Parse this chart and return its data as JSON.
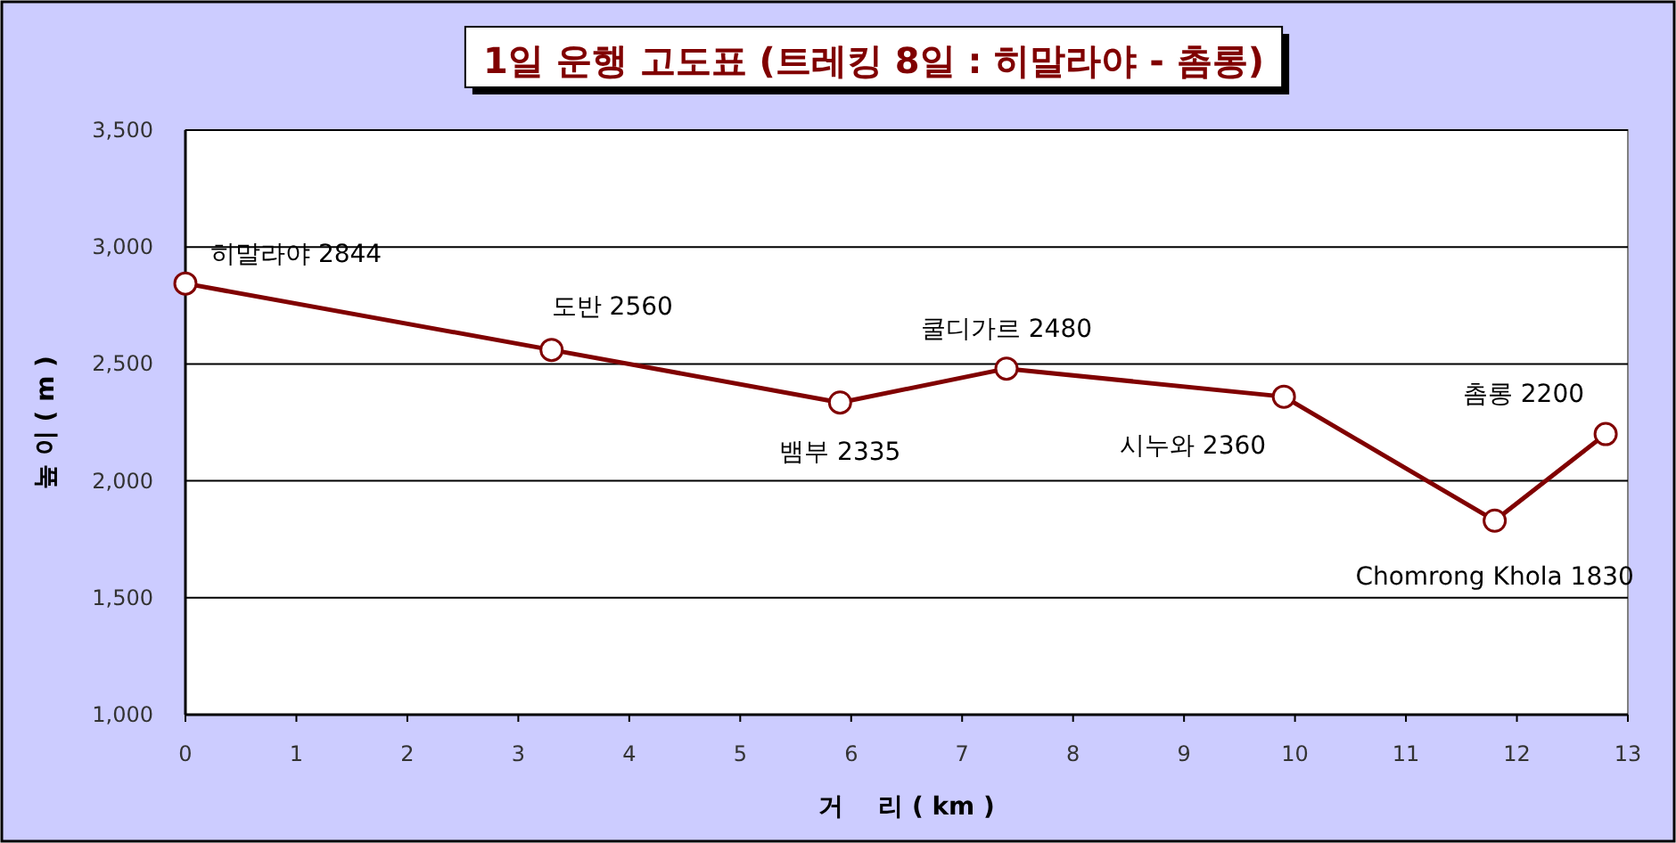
{
  "chart_data": {
    "type": "line",
    "title": "1일 운행 고도표 (트레킹 8일 : 히말라야 - 촘롱)",
    "xlabel": "거    리 ( km )",
    "ylabel": "높 이 ( m )",
    "x": [
      0,
      3.3,
      5.9,
      7.4,
      9.9,
      11.8,
      12.8
    ],
    "series": [
      {
        "color": "#800000",
        "values": [
          2844,
          2560,
          2335,
          2480,
          2360,
          1830,
          2200
        ],
        "value_labels": [
          "히말라야 2844",
          "도반 2560",
          "뱀부 2335",
          "쿨디가르 2480",
          "시누와 2360",
          "Chomrong Khola 1830",
          "촘롱 2200"
        ]
      }
    ],
    "xlim": [
      0,
      13
    ],
    "xticks": [
      0,
      1,
      2,
      3,
      4,
      5,
      6,
      7,
      8,
      9,
      10,
      11,
      12,
      13
    ],
    "ylim": [
      1000,
      3500
    ],
    "yticks": [
      {
        "value": 1000,
        "label": "1,000"
      },
      {
        "value": 1500,
        "label": "1,500"
      },
      {
        "value": 2000,
        "label": "2,000"
      },
      {
        "value": 2500,
        "label": "2,500"
      },
      {
        "value": 3000,
        "label": "3,000"
      },
      {
        "value": 3500,
        "label": "3,500"
      }
    ],
    "grid": "y",
    "marker": "circle",
    "line_style": "solid"
  }
}
